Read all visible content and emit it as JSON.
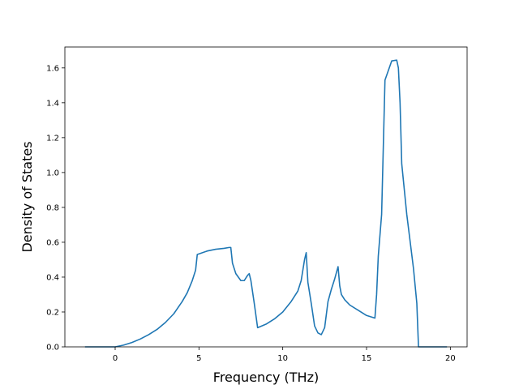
{
  "chart_data": {
    "type": "line",
    "xlabel": "Frequency (THz)",
    "ylabel": "Density of States",
    "xlim": [
      -3.0,
      21.0
    ],
    "ylim": [
      0.0,
      1.72
    ],
    "xticks": [
      0,
      5,
      10,
      15,
      20
    ],
    "yticks": [
      0.0,
      0.2,
      0.4,
      0.6,
      0.8,
      1.0,
      1.2,
      1.4,
      1.6
    ],
    "xtick_labels": [
      "0",
      "5",
      "10",
      "15",
      "20"
    ],
    "ytick_labels": [
      "0.0",
      "0.2",
      "0.4",
      "0.6",
      "0.8",
      "1.0",
      "1.2",
      "1.4",
      "1.6"
    ],
    "grid": false,
    "line_color": "#1f77b4",
    "series": [
      {
        "x": [
          -1.8,
          -1.0,
          0.0,
          0.5,
          1.0,
          1.5,
          2.0,
          2.5,
          3.0,
          3.5,
          4.0,
          4.3,
          4.6,
          4.8,
          4.9,
          5.5,
          6.0,
          6.5,
          6.8,
          6.9,
          7.0,
          7.2,
          7.5,
          7.7,
          7.9,
          8.0,
          8.1,
          8.3,
          8.5,
          9.0,
          9.5,
          10.0,
          10.5,
          10.9,
          11.1,
          11.3,
          11.4,
          11.5,
          11.7,
          11.9,
          12.1,
          12.3,
          12.5,
          12.7,
          12.9,
          13.1,
          13.3,
          13.4,
          13.5,
          13.7,
          14.0,
          14.5,
          15.0,
          15.5,
          15.6,
          15.7,
          15.9,
          16.1,
          16.5,
          16.8,
          16.9,
          17.0,
          17.1,
          17.4,
          17.8,
          18.0,
          18.1,
          18.5,
          19.8
        ],
        "y": [
          0.0,
          0.0,
          0.0,
          0.01,
          0.025,
          0.045,
          0.07,
          0.1,
          0.14,
          0.19,
          0.26,
          0.31,
          0.38,
          0.44,
          0.53,
          0.55,
          0.56,
          0.565,
          0.57,
          0.57,
          0.48,
          0.42,
          0.38,
          0.38,
          0.41,
          0.42,
          0.38,
          0.25,
          0.11,
          0.13,
          0.16,
          0.2,
          0.26,
          0.32,
          0.38,
          0.5,
          0.54,
          0.37,
          0.25,
          0.12,
          0.08,
          0.07,
          0.11,
          0.26,
          0.33,
          0.39,
          0.46,
          0.35,
          0.3,
          0.27,
          0.24,
          0.21,
          0.18,
          0.165,
          0.3,
          0.52,
          0.76,
          1.53,
          1.64,
          1.645,
          1.6,
          1.4,
          1.05,
          0.76,
          0.45,
          0.25,
          0.0,
          0.0,
          0.0
        ]
      }
    ]
  }
}
